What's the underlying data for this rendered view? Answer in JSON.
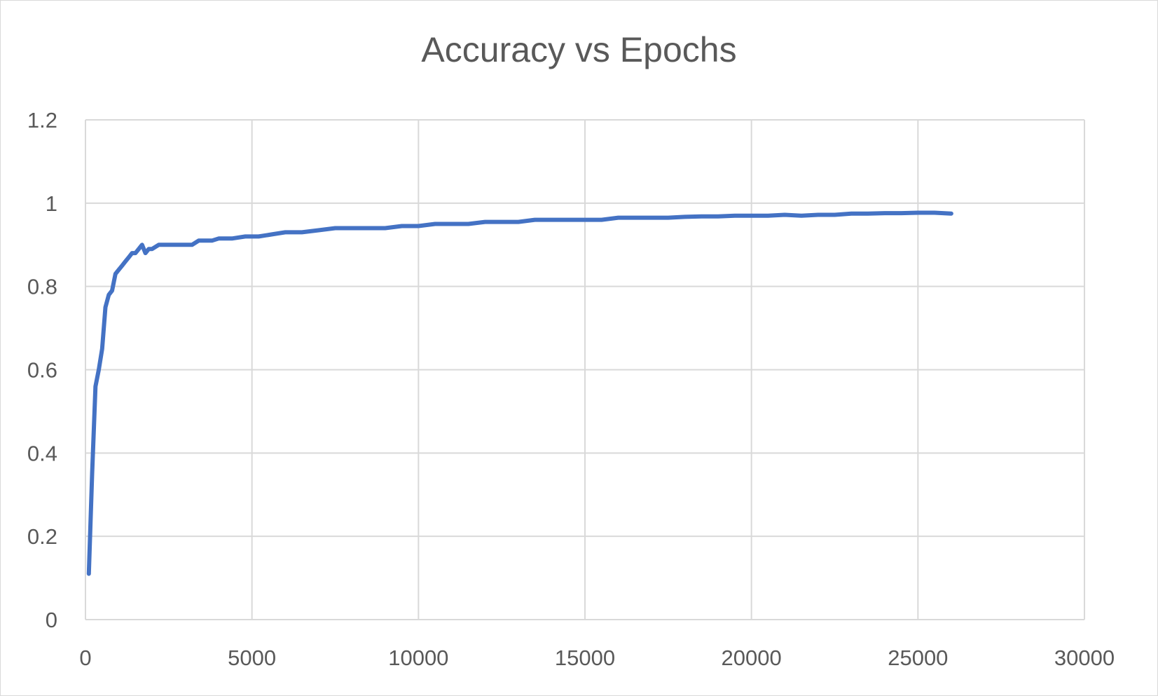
{
  "chart_data": {
    "type": "line",
    "title": "Accuracy vs Epochs",
    "xlabel": "",
    "ylabel": "",
    "xlim": [
      0,
      30000
    ],
    "ylim": [
      0,
      1.2
    ],
    "x_ticks": [
      0,
      5000,
      10000,
      15000,
      20000,
      25000,
      30000
    ],
    "y_ticks": [
      0,
      0.2,
      0.4,
      0.6,
      0.8,
      1,
      1.2
    ],
    "x_tick_labels": [
      "0",
      "5000",
      "10000",
      "15000",
      "20000",
      "25000",
      "30000"
    ],
    "y_tick_labels": [
      "0",
      "0.2",
      "0.4",
      "0.6",
      "0.8",
      "1",
      "1.2"
    ],
    "grid": true,
    "legend": "none",
    "line_color": "#4472c4",
    "series": [
      {
        "x": [
          100,
          200,
          300,
          400,
          500,
          600,
          700,
          800,
          900,
          1000,
          1100,
          1200,
          1300,
          1400,
          1500,
          1600,
          1700,
          1800,
          1900,
          2000,
          2200,
          2400,
          2600,
          2800,
          3000,
          3200,
          3400,
          3600,
          3800,
          4000,
          4400,
          4800,
          5200,
          5600,
          6000,
          6500,
          7000,
          7500,
          8000,
          8500,
          9000,
          9500,
          10000,
          10500,
          11000,
          11500,
          12000,
          12500,
          13000,
          13500,
          14000,
          14500,
          15000,
          15500,
          16000,
          16500,
          17000,
          17500,
          18000,
          18500,
          19000,
          19500,
          20000,
          20500,
          21000,
          21500,
          22000,
          22500,
          23000,
          23500,
          24000,
          24500,
          25000,
          25500,
          26000
        ],
        "values": [
          0.11,
          0.35,
          0.56,
          0.6,
          0.65,
          0.75,
          0.78,
          0.79,
          0.83,
          0.84,
          0.85,
          0.86,
          0.87,
          0.88,
          0.88,
          0.89,
          0.9,
          0.88,
          0.89,
          0.89,
          0.9,
          0.9,
          0.9,
          0.9,
          0.9,
          0.9,
          0.91,
          0.91,
          0.91,
          0.915,
          0.915,
          0.92,
          0.92,
          0.925,
          0.93,
          0.93,
          0.935,
          0.94,
          0.94,
          0.94,
          0.94,
          0.945,
          0.945,
          0.95,
          0.95,
          0.95,
          0.955,
          0.955,
          0.955,
          0.96,
          0.96,
          0.96,
          0.96,
          0.96,
          0.965,
          0.965,
          0.965,
          0.965,
          0.967,
          0.968,
          0.968,
          0.97,
          0.97,
          0.97,
          0.972,
          0.97,
          0.972,
          0.972,
          0.975,
          0.975,
          0.976,
          0.976,
          0.977,
          0.977,
          0.975
        ]
      }
    ]
  }
}
